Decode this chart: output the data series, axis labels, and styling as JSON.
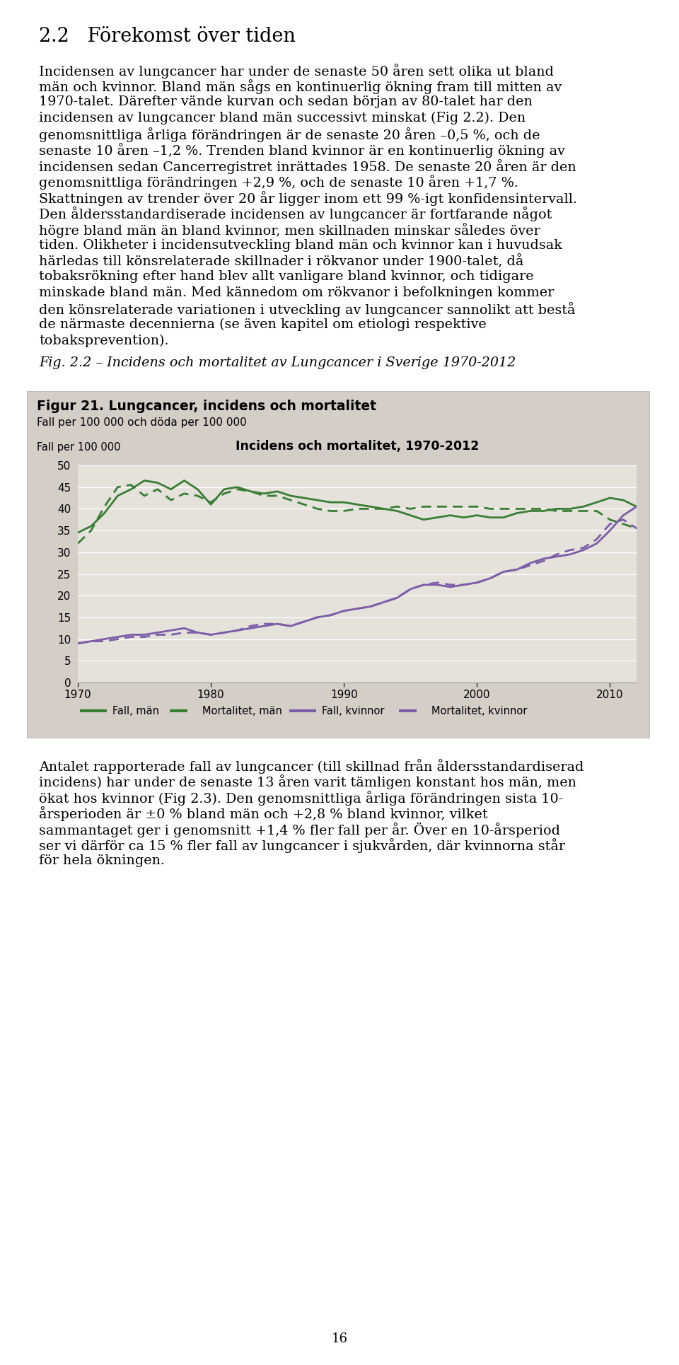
{
  "page_title": "2.2   Förekomst över tiden",
  "all_text_lines": [
    "Incidensen av lungcancer har under de senaste 50 åren sett olika ut bland",
    "män och kvinnor. Bland män sågs en kontinuerlig ökning fram till mitten av",
    "1970-talet. Därefter vände kurvan och sedan början av 80-talet har den",
    "incidensen av lungcancer bland män successivt minskat (Fig 2.2). Den",
    "genomsnittliga årliga förändringen är de senaste 20 åren –0,5 %, och de",
    "senaste 10 åren –1,2 %. Trenden bland kvinnor är en kontinuerlig ökning av",
    "incidensen sedan Cancerregistret inrättades 1958. De senaste 20 åren är den",
    "genomsnittliga förändringen +2,9 %, och de senaste 10 åren +1,7 %.",
    "Skattningen av trender över 20 år ligger inom ett 99 %-igt konfidensintervall.",
    "Den åldersstandardiserade incidensen av lungcancer är fortfarande något",
    "högre bland män än bland kvinnor, men skillnaden minskar således över",
    "tiden. Olikheter i incidensutveckling bland män och kvinnor kan i huvudsak",
    "härledas till könsrelaterade skillnader i rökvanor under 1900-talet, då",
    "tobaksrökning efter hand blev allt vanligare bland kvinnor, och tidigare",
    "minskade bland män. Med kännedom om rökvanor i befolkningen kommer",
    "den könsrelaterade variationen i utveckling av lungcancer sannolikt att bestå",
    "de närmaste decennierna (se även kapitel om etiologi respektive",
    "tobaksprevention)."
  ],
  "fig_caption": "Fig. 2.2 – Incidens och mortalitet av Lungcancer i Sverige 1970-2012",
  "chart_title_bold": "Figur 21. Lungcancer, incidens och mortalitet",
  "chart_subtitle": "Fall per 100 000 och döda per 100 000",
  "chart_ylabel": "Fall per 100 000",
  "chart_inner_title": "Incidens och mortalitet, 1970-2012",
  "chart_bg": "#d3cec8",
  "chart_plot_bg": "#e5e1db",
  "yticks": [
    0,
    5,
    10,
    15,
    20,
    25,
    30,
    35,
    40,
    45,
    50
  ],
  "xticks": [
    1970,
    1980,
    1990,
    2000,
    2010
  ],
  "xmin": 1970,
  "xmax": 2012,
  "ymin": 0,
  "ymax": 50,
  "color_man": "#3a7d35",
  "color_woman": "#7b5ea7",
  "bottom_text_lines": [
    "Antalet rapporterade fall av lungcancer (till skillnad från åldersstandardiserad",
    "incidens) har under de senaste 13 åren varit tämligen konstant hos män, men",
    "ökat hos kvinnor (Fig 2.3). Den genomsnittliga årliga förändringen sista 10-",
    "årsperioden är ±0 % bland män och +2,8 % bland kvinnor, vilket",
    "sammantaget ger i genomsnitt +1,4 % fler fall per år. Över en 10-årsperiod",
    "ser vi därför ca 15 % fler fall av lungcancer i sjukvården, där kvinnorna står",
    "för hela ökningen."
  ],
  "page_number": "16",
  "man_incidence": [
    34.5,
    36.0,
    39.0,
    43.0,
    44.5,
    46.5,
    46.0,
    44.5,
    46.5,
    44.5,
    41.0,
    44.5,
    45.0,
    44.0,
    43.5,
    44.0,
    43.0,
    42.5,
    42.0,
    41.5,
    41.5,
    41.0,
    40.5,
    40.0,
    39.5,
    38.5,
    37.5,
    38.0,
    38.5,
    38.0,
    38.5,
    38.0,
    38.0,
    39.0,
    39.5,
    39.5,
    40.0,
    40.0,
    40.5,
    41.5,
    42.5,
    42.0,
    40.5
  ],
  "man_mortality": [
    32.0,
    35.0,
    40.5,
    45.0,
    45.5,
    43.0,
    44.5,
    42.0,
    43.5,
    43.0,
    41.5,
    43.5,
    44.5,
    44.0,
    43.0,
    43.0,
    42.0,
    41.0,
    40.0,
    39.5,
    39.5,
    40.0,
    40.0,
    40.0,
    40.5,
    40.0,
    40.5,
    40.5,
    40.5,
    40.5,
    40.5,
    40.0,
    40.0,
    40.0,
    40.0,
    40.0,
    39.5,
    39.5,
    39.5,
    39.5,
    37.5,
    36.5,
    35.5
  ],
  "woman_incidence": [
    9.0,
    9.5,
    10.0,
    10.5,
    11.0,
    11.0,
    11.5,
    12.0,
    12.5,
    11.5,
    11.0,
    11.5,
    12.0,
    12.5,
    13.0,
    13.5,
    13.0,
    14.0,
    15.0,
    15.5,
    16.5,
    17.0,
    17.5,
    18.5,
    19.5,
    21.5,
    22.5,
    22.5,
    22.0,
    22.5,
    23.0,
    24.0,
    25.5,
    26.0,
    27.5,
    28.5,
    29.0,
    29.5,
    30.5,
    32.0,
    35.0,
    38.5,
    40.5
  ],
  "woman_mortality": [
    9.0,
    9.5,
    9.5,
    10.0,
    10.5,
    10.5,
    11.0,
    11.0,
    11.5,
    11.5,
    11.0,
    11.5,
    12.0,
    13.0,
    13.5,
    13.5,
    13.0,
    14.0,
    15.0,
    15.5,
    16.5,
    17.0,
    17.5,
    18.5,
    19.5,
    21.5,
    22.5,
    23.0,
    22.5,
    22.5,
    23.0,
    24.0,
    25.5,
    26.0,
    27.0,
    28.0,
    29.5,
    30.5,
    31.0,
    33.0,
    36.5,
    37.5,
    35.5
  ],
  "years": [
    1970,
    1971,
    1972,
    1973,
    1974,
    1975,
    1976,
    1977,
    1978,
    1979,
    1980,
    1981,
    1982,
    1983,
    1984,
    1985,
    1986,
    1987,
    1988,
    1989,
    1990,
    1991,
    1992,
    1993,
    1994,
    1995,
    1996,
    1997,
    1998,
    1999,
    2000,
    2001,
    2002,
    2003,
    2004,
    2005,
    2006,
    2007,
    2008,
    2009,
    2010,
    2011,
    2012
  ]
}
